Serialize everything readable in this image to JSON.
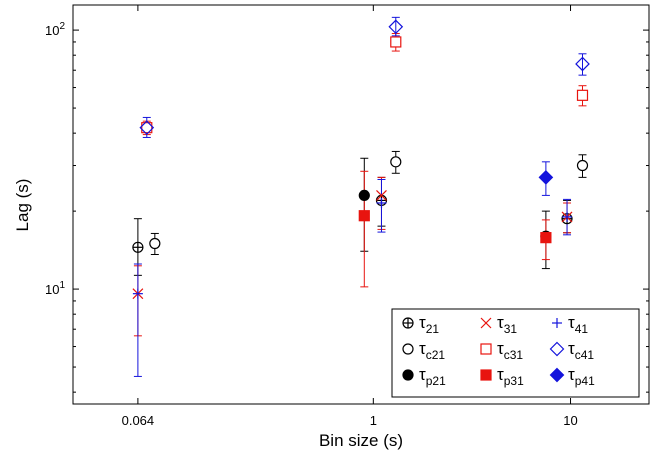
{
  "chart_data": {
    "type": "scatter",
    "xlabel": "Bin size (s)",
    "ylabel": "Lag (s)",
    "x_scale": "log",
    "y_scale": "log",
    "xlim": [
      0.03,
      25
    ],
    "ylim": [
      3.6,
      125
    ],
    "x_ticks": [
      {
        "value": 0.064,
        "label": "0.064"
      },
      {
        "value": 1,
        "label": "1"
      },
      {
        "value": 10,
        "label": "10"
      }
    ],
    "y_ticks": [
      {
        "value": 10,
        "label": "10",
        "exp": "1"
      },
      {
        "value": 100,
        "label": "10",
        "exp": "2"
      }
    ],
    "grid": false,
    "legend_position": "bottom-right",
    "colors": {
      "black": "#000000",
      "red": "#e8140f",
      "blue": "#1414dc"
    },
    "series": [
      {
        "name": "τ21",
        "marker": "circle-plus",
        "color": "#000000",
        "points": [
          {
            "x": 0.064,
            "y": 14.5,
            "lo": 11.3,
            "hi": 18.7
          },
          {
            "x": 1.1,
            "y": 22,
            "lo": 17.5,
            "hi": 27
          },
          {
            "x": 9.6,
            "y": 18.7,
            "lo": 16.5,
            "hi": 22
          }
        ]
      },
      {
        "name": "τ31",
        "marker": "x",
        "color": "#e8140f",
        "points": [
          {
            "x": 0.064,
            "y": 9.6,
            "lo": 6.6,
            "hi": 12.3
          },
          {
            "x": 1.1,
            "y": 23,
            "lo": 17,
            "hi": 27
          },
          {
            "x": 9.6,
            "y": 19,
            "lo": 16.5,
            "hi": 21.5
          }
        ]
      },
      {
        "name": "τ41",
        "marker": "plus",
        "color": "#1414dc",
        "points": [
          {
            "x": 0.064,
            "y": 9.6,
            "lo": 4.6,
            "hi": 12.5
          },
          {
            "x": 1.1,
            "y": 21.5,
            "lo": 16.6,
            "hi": 26.5
          },
          {
            "x": 9.6,
            "y": 19,
            "lo": 16.2,
            "hi": 22.2
          }
        ]
      },
      {
        "name": "τc21",
        "marker": "circle-open",
        "color": "#000000",
        "points": [
          {
            "x": 0.078,
            "y": 15,
            "lo": 13.6,
            "hi": 16.4
          },
          {
            "x": 1.3,
            "y": 31,
            "lo": 28,
            "hi": 34
          },
          {
            "x": 11.5,
            "y": 30,
            "lo": 27,
            "hi": 33
          }
        ]
      },
      {
        "name": "τc31",
        "marker": "square-open",
        "color": "#e8140f",
        "points": [
          {
            "x": 0.071,
            "y": 42,
            "lo": 39.5,
            "hi": 44.5
          },
          {
            "x": 1.3,
            "y": 90,
            "lo": 83,
            "hi": 97
          },
          {
            "x": 11.5,
            "y": 56,
            "lo": 51,
            "hi": 61
          }
        ]
      },
      {
        "name": "τc41",
        "marker": "diamond-open",
        "color": "#1414dc",
        "points": [
          {
            "x": 0.071,
            "y": 42,
            "lo": 38.5,
            "hi": 46
          },
          {
            "x": 1.3,
            "y": 103,
            "lo": 95,
            "hi": 112
          },
          {
            "x": 11.5,
            "y": 74,
            "lo": 67,
            "hi": 81
          }
        ]
      },
      {
        "name": "τp21",
        "marker": "circle-filled",
        "color": "#000000",
        "points": [
          {
            "x": 0.9,
            "y": 23,
            "lo": 14,
            "hi": 32
          },
          {
            "x": 7.5,
            "y": 16,
            "lo": 12,
            "hi": 20
          }
        ]
      },
      {
        "name": "τp31",
        "marker": "square-filled",
        "color": "#e8140f",
        "points": [
          {
            "x": 0.9,
            "y": 19.2,
            "lo": 10.2,
            "hi": 28.5
          },
          {
            "x": 7.5,
            "y": 15.8,
            "lo": 13,
            "hi": 18.5
          }
        ]
      },
      {
        "name": "τp41",
        "marker": "diamond-filled",
        "color": "#1414dc",
        "points": [
          {
            "x": 7.5,
            "y": 27,
            "lo": 23,
            "hi": 31
          }
        ]
      }
    ],
    "legend": [
      {
        "base": "τ",
        "sub": "21",
        "marker": "circle-plus",
        "color": "#000000"
      },
      {
        "base": "τ",
        "sub": "31",
        "marker": "x",
        "color": "#e8140f"
      },
      {
        "base": "τ",
        "sub": "41",
        "marker": "plus",
        "color": "#1414dc"
      },
      {
        "base": "τ",
        "sub": "c21",
        "marker": "circle-open",
        "color": "#000000"
      },
      {
        "base": "τ",
        "sub": "c31",
        "marker": "square-open",
        "color": "#e8140f"
      },
      {
        "base": "τ",
        "sub": "c41",
        "marker": "diamond-open",
        "color": "#1414dc"
      },
      {
        "base": "τ",
        "sub": "p21",
        "marker": "circle-filled",
        "color": "#000000"
      },
      {
        "base": "τ",
        "sub": "p31",
        "marker": "square-filled",
        "color": "#e8140f"
      },
      {
        "base": "τ",
        "sub": "p41",
        "marker": "diamond-filled",
        "color": "#1414dc"
      }
    ]
  }
}
